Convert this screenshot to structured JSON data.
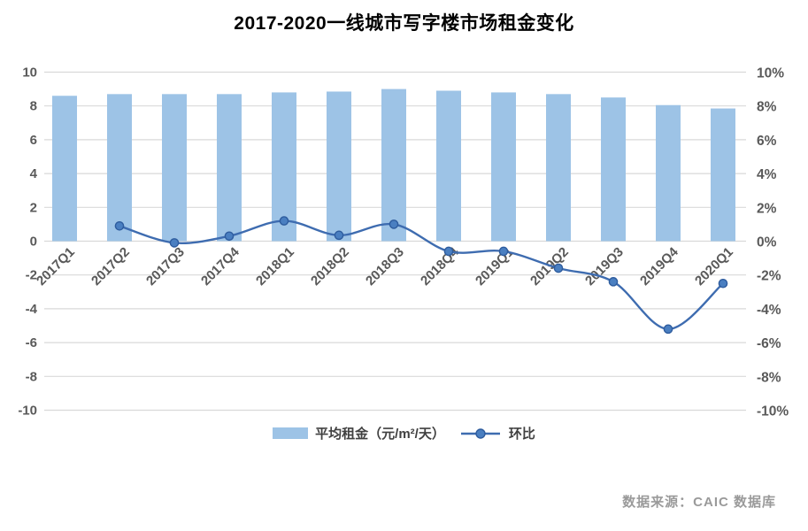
{
  "title": "2017-2020一线城市写字楼市场租金变化",
  "source": "数据来源：CAIC 数据库",
  "legend": [
    {
      "label": "平均租金（元/m²/天）",
      "type": "bar"
    },
    {
      "label": "环比",
      "type": "line"
    }
  ],
  "colors": {
    "bar": "#9DC3E6",
    "line": "#3E6CB0",
    "marker_fill": "#4A7FC1",
    "marker_stroke": "#2E5C9E",
    "grid": "#D9D9D9",
    "axis_text": "#595959",
    "title_text": "#000000",
    "source_text": "#9A9A9A"
  },
  "chart_data": {
    "type": "bar",
    "subtype": "bar+line combo, dual axis",
    "title": "2017-2020一线城市写字楼市场租金变化",
    "categories": [
      "2017Q1",
      "2017Q2",
      "2017Q3",
      "2017Q4",
      "2018Q1",
      "2018Q2",
      "2018Q3",
      "2018Q4",
      "2019Q1",
      "2019Q2",
      "2019Q3",
      "2019Q4",
      "2020Q1"
    ],
    "series": [
      {
        "name": "平均租金（元/m²/天）",
        "type": "bar",
        "axis": "left",
        "values": [
          8.6,
          8.7,
          8.7,
          8.7,
          8.8,
          8.85,
          9.0,
          8.9,
          8.8,
          8.7,
          8.5,
          8.05,
          7.85
        ]
      },
      {
        "name": "环比",
        "type": "line",
        "axis": "right",
        "unit": "%",
        "values": [
          null,
          0.9,
          -0.1,
          0.3,
          1.2,
          0.35,
          1.0,
          -0.6,
          -0.6,
          -1.6,
          -2.4,
          -5.2,
          -2.5
        ]
      }
    ],
    "left_axis": {
      "range": [
        -10,
        10
      ],
      "ticks": [
        10,
        8,
        6,
        4,
        2,
        0,
        -2,
        -4,
        -6,
        -8,
        -10
      ]
    },
    "right_axis": {
      "range": [
        -10,
        10
      ],
      "tick_labels": [
        "10%",
        "8%",
        "6%",
        "4%",
        "2%",
        "0%",
        "-2%",
        "-4%",
        "-6%",
        "-8%",
        "-10%"
      ]
    },
    "grid": true,
    "x_label_rotation": -45,
    "legend_position": "bottom"
  }
}
